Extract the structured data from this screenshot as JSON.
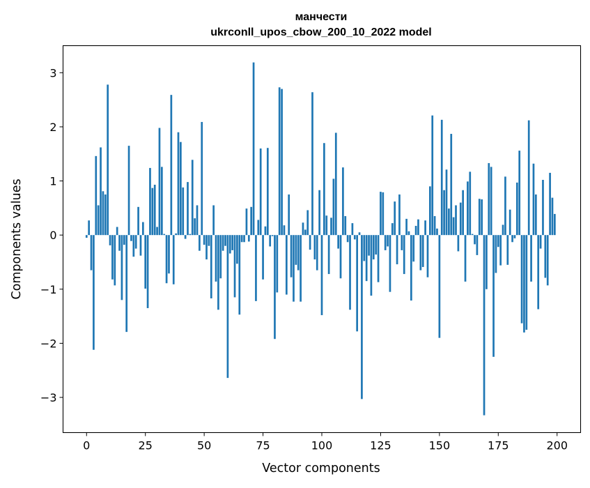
{
  "chart_data": {
    "type": "bar",
    "title": "манчести",
    "subtitle": "ukrconll_upos_cbow_200_10_2022 model",
    "xlabel": "Vector components",
    "ylabel": "Components values",
    "xlim": [
      -10,
      210
    ],
    "ylim": [
      -3.65,
      3.5
    ],
    "xticks": [
      0,
      25,
      50,
      75,
      100,
      125,
      150,
      175,
      200
    ],
    "yticks": [
      -3,
      -2,
      -1,
      0,
      1,
      2,
      3
    ],
    "ytick_labels": [
      "−3",
      "−2",
      "−1",
      "0",
      "1",
      "2",
      "3"
    ],
    "grid": false,
    "bar_color": "#1f77b4",
    "x": [
      0,
      1,
      2,
      3,
      4,
      5,
      6,
      7,
      8,
      9,
      10,
      11,
      12,
      13,
      14,
      15,
      16,
      17,
      18,
      19,
      20,
      21,
      22,
      23,
      24,
      25,
      26,
      27,
      28,
      29,
      30,
      31,
      32,
      33,
      34,
      35,
      36,
      37,
      38,
      39,
      40,
      41,
      42,
      43,
      44,
      45,
      46,
      47,
      48,
      49,
      50,
      51,
      52,
      53,
      54,
      55,
      56,
      57,
      58,
      59,
      60,
      61,
      62,
      63,
      64,
      65,
      66,
      67,
      68,
      69,
      70,
      71,
      72,
      73,
      74,
      75,
      76,
      77,
      78,
      79,
      80,
      81,
      82,
      83,
      84,
      85,
      86,
      87,
      88,
      89,
      90,
      91,
      92,
      93,
      94,
      95,
      96,
      97,
      98,
      99,
      100,
      101,
      102,
      103,
      104,
      105,
      106,
      107,
      108,
      109,
      110,
      111,
      112,
      113,
      114,
      115,
      116,
      117,
      118,
      119,
      120,
      121,
      122,
      123,
      124,
      125,
      126,
      127,
      128,
      129,
      130,
      131,
      132,
      133,
      134,
      135,
      136,
      137,
      138,
      139,
      140,
      141,
      142,
      143,
      144,
      145,
      146,
      147,
      148,
      149,
      150,
      151,
      152,
      153,
      154,
      155,
      156,
      157,
      158,
      159,
      160,
      161,
      162,
      163,
      164,
      165,
      166,
      167,
      168,
      169,
      170,
      171,
      172,
      173,
      174,
      175,
      176,
      177,
      178,
      179,
      180,
      181,
      182,
      183,
      184,
      185,
      186,
      187,
      188,
      189,
      190,
      191,
      192,
      193,
      194,
      195,
      196,
      197,
      198,
      199
    ],
    "values": [
      -0.05,
      0.27,
      -0.65,
      -2.12,
      1.46,
      0.55,
      1.62,
      0.81,
      0.75,
      2.78,
      -0.19,
      -0.82,
      -0.93,
      0.15,
      -0.29,
      -1.2,
      -0.18,
      -1.79,
      1.65,
      -0.11,
      -0.4,
      -0.25,
      0.52,
      -0.38,
      0.24,
      -0.99,
      -1.35,
      1.24,
      0.87,
      0.93,
      0.15,
      1.98,
      1.26,
      0.02,
      -0.89,
      -0.71,
      2.59,
      -0.91,
      0.03,
      1.9,
      1.72,
      0.88,
      -0.07,
      0.98,
      0.02,
      1.39,
      0.31,
      0.55,
      -0.29,
      2.09,
      -0.18,
      -0.45,
      -0.2,
      -1.17,
      0.55,
      -0.86,
      -1.38,
      -0.8,
      -0.29,
      -0.2,
      -2.64,
      -0.34,
      -0.28,
      -1.15,
      -0.53,
      -1.47,
      -0.13,
      -0.13,
      0.49,
      -0.12,
      0.52,
      3.19,
      -1.22,
      0.28,
      1.6,
      -0.82,
      0.16,
      1.61,
      -0.21,
      -0.02,
      -1.92,
      -1.06,
      2.73,
      2.7,
      0.18,
      -1.1,
      0.75,
      -0.78,
      -1.23,
      -0.55,
      -0.65,
      -1.23,
      0.23,
      0.1,
      0.46,
      -0.27,
      2.64,
      -0.45,
      -0.65,
      0.83,
      -1.48,
      1.7,
      0.36,
      -0.72,
      0.32,
      1.04,
      1.89,
      -0.25,
      -0.8,
      1.25,
      0.35,
      -0.13,
      -1.38,
      0.22,
      -0.08,
      -1.78,
      0.05,
      -3.03,
      -0.48,
      -0.85,
      -0.38,
      -1.12,
      -0.45,
      -0.36,
      -0.87,
      0.8,
      0.79,
      -0.28,
      -0.21,
      -1.05,
      0.22,
      0.62,
      -0.54,
      0.75,
      -0.28,
      -0.72,
      0.3,
      0.07,
      -1.21,
      -0.49,
      0.17,
      0.29,
      -0.65,
      -0.59,
      0.27,
      -0.78,
      0.9,
      2.21,
      0.35,
      0.12,
      -1.9,
      2.13,
      0.83,
      1.21,
      0.49,
      1.87,
      0.33,
      0.55,
      -0.3,
      0.6,
      0.83,
      -0.86,
      0.99,
      1.17,
      0.02,
      -0.17,
      -0.37,
      0.67,
      0.66,
      -3.33,
      -1.0,
      1.33,
      1.26,
      -2.25,
      -0.7,
      -0.22,
      -0.56,
      0.19,
      1.08,
      -0.55,
      0.47,
      -0.13,
      -0.06,
      0.97,
      1.56,
      -1.63,
      -1.8,
      -1.75,
      2.12,
      -0.86,
      1.32,
      0.75,
      -1.37,
      -0.25,
      1.02,
      -0.79,
      -0.93,
      1.15,
      0.69,
      0.39
    ]
  }
}
